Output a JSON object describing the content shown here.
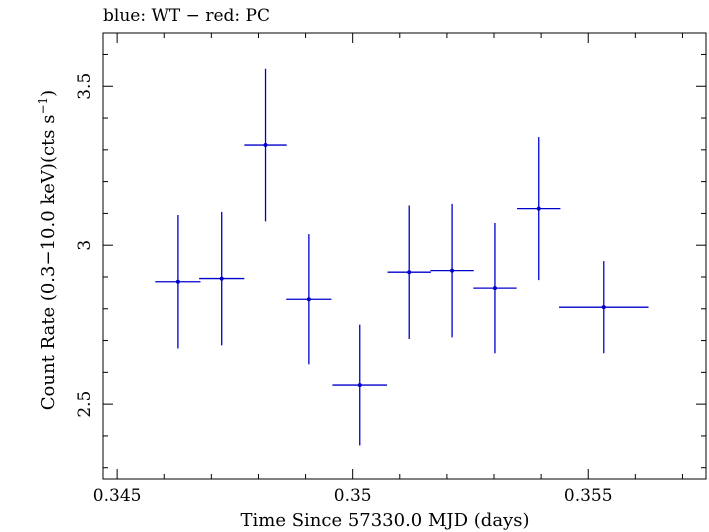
{
  "chart_data": {
    "type": "scatter",
    "title": "blue: WT − red: PC",
    "xlabel": "Time Since 57330.0 MJD (days)",
    "ylabel_main": "Count Rate (0.3−10.0 keV)(cts s",
    "ylabel_sup": "−1",
    "ylabel_end": ")",
    "xlim": [
      0.3447,
      0.3575
    ],
    "ylim": [
      2.2645,
      3.6675
    ],
    "xticks": [
      0.345,
      0.35,
      0.355
    ],
    "xtick_labels": [
      "0.345",
      "0.35",
      "0.355"
    ],
    "yticks": [
      2.5,
      3,
      3.5
    ],
    "ytick_labels": [
      "2.5",
      "3",
      "3.5"
    ],
    "grid": false,
    "series": [
      {
        "color": "#0000cc",
        "points": [
          {
            "x": 0.34629,
            "xerr": 0.00048,
            "y": 2.885,
            "yerr": 0.21
          },
          {
            "x": 0.34722,
            "xerr": 0.00048,
            "y": 2.895,
            "yerr": 0.21
          },
          {
            "x": 0.34815,
            "xerr": 0.00045,
            "y": 3.315,
            "yerr": 0.24
          },
          {
            "x": 0.34907,
            "xerr": 0.00048,
            "y": 2.83,
            "yerr": 0.205
          },
          {
            "x": 0.35015,
            "xerr": 0.00058,
            "y": 2.56,
            "yerr": 0.19
          },
          {
            "x": 0.3512,
            "xerr": 0.00046,
            "y": 2.915,
            "yerr": 0.21
          },
          {
            "x": 0.35211,
            "xerr": 0.00046,
            "y": 2.92,
            "yerr": 0.21
          },
          {
            "x": 0.35302,
            "xerr": 0.00046,
            "y": 2.865,
            "yerr": 0.205
          },
          {
            "x": 0.35395,
            "xerr": 0.00046,
            "y": 3.115,
            "yerr": 0.225
          },
          {
            "x": 0.35533,
            "xerr": 0.00095,
            "y": 2.805,
            "yerr": 0.145
          }
        ]
      }
    ]
  }
}
